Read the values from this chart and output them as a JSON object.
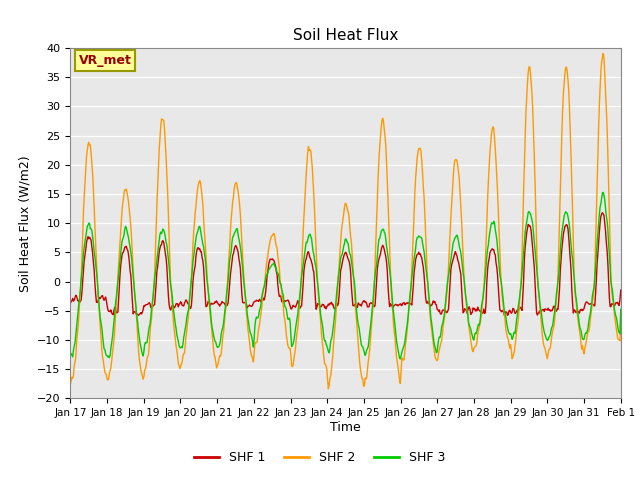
{
  "title": "Soil Heat Flux",
  "ylabel": "Soil Heat Flux (W/m2)",
  "xlabel": "Time",
  "ylim": [
    -20,
    40
  ],
  "bg_color": "#e8e8e8",
  "fig_color": "#ffffff",
  "line_colors": [
    "#cc0000",
    "#ff9900",
    "#00cc00"
  ],
  "line_labels": [
    "SHF 1",
    "SHF 2",
    "SHF 3"
  ],
  "annotation_text": "VR_met",
  "annotation_fg": "#990000",
  "annotation_bg": "#ffff99",
  "annotation_edge": "#999900",
  "xtick_labels": [
    "Jan 17",
    "Jan 18",
    "Jan 19",
    "Jan 20",
    "Jan 21",
    "Jan 22",
    "Jan 23",
    "Jan 24",
    "Jan 25",
    "Jan 26",
    "Jan 27",
    "Jan 28",
    "Jan 29",
    "Jan 30",
    "Jan 31",
    "Feb 1"
  ],
  "days": 15,
  "pts_per_day": 48,
  "day_peaks2": [
    24,
    16,
    28,
    17,
    17,
    8,
    23,
    13,
    28,
    23,
    21,
    26,
    37,
    37,
    39
  ],
  "day_troughs2": [
    -17,
    -17,
    -15,
    -14,
    -14,
    -11,
    -15,
    -18,
    -17,
    -14,
    -12,
    -11,
    -13,
    -12,
    -11
  ],
  "day_peaks3": [
    10,
    9,
    9,
    9,
    9,
    3,
    8,
    7,
    9,
    8,
    8,
    10,
    12,
    12,
    15
  ],
  "day_troughs3": [
    -13,
    -13,
    -11,
    -11,
    -11,
    -7,
    -11,
    -12,
    -13,
    -12,
    -10,
    -9,
    -10,
    -10,
    -9
  ],
  "day_peaks1": [
    8,
    6,
    7,
    6,
    6,
    4,
    5,
    5,
    6,
    5,
    5,
    6,
    10,
    10,
    12
  ],
  "day_base1": [
    -3,
    -5,
    -4,
    -4,
    -4,
    -3,
    -4,
    -4,
    -4,
    -4,
    -5,
    -5,
    -5,
    -5,
    -4
  ]
}
